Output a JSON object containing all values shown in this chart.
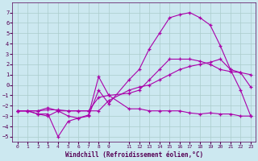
{
  "xlabel": "Windchill (Refroidissement éolien,°C)",
  "background_color": "#cce8f0",
  "grid_color": "#aacccc",
  "line_color": "#aa00aa",
  "ylim": [
    -5.5,
    8.0
  ],
  "xlim": [
    -0.5,
    23.5
  ],
  "y_ticks": [
    -5,
    -4,
    -3,
    -2,
    -1,
    0,
    1,
    2,
    3,
    4,
    5,
    6,
    7
  ],
  "x_ticks": [
    0,
    1,
    2,
    3,
    4,
    5,
    6,
    7,
    8,
    9,
    11,
    12,
    13,
    14,
    15,
    16,
    17,
    18,
    19,
    20,
    21,
    22,
    23
  ],
  "series": [
    [
      0,
      -2.5
    ],
    [
      1,
      -2.5
    ],
    [
      2,
      -2.8
    ],
    [
      3,
      -2.8
    ],
    [
      4,
      -5.0
    ],
    [
      5,
      -3.5
    ],
    [
      6,
      -3.2
    ],
    [
      7,
      -2.9
    ],
    [
      8,
      0.8
    ],
    [
      9,
      -1.0
    ],
    [
      11,
      -2.3
    ],
    [
      12,
      -2.3
    ],
    [
      13,
      -2.5
    ],
    [
      14,
      -2.5
    ],
    [
      15,
      -2.5
    ],
    [
      16,
      -2.5
    ],
    [
      17,
      -2.7
    ],
    [
      18,
      -2.8
    ],
    [
      19,
      -2.7
    ],
    [
      20,
      -2.8
    ],
    [
      21,
      -2.8
    ],
    [
      22,
      -3.0
    ],
    [
      23,
      -3.0
    ]
  ],
  "series2": [
    [
      0,
      -2.5
    ],
    [
      1,
      -2.5
    ],
    [
      2,
      -2.5
    ],
    [
      3,
      -2.4
    ],
    [
      4,
      -2.4
    ],
    [
      5,
      -2.5
    ],
    [
      6,
      -2.5
    ],
    [
      7,
      -2.5
    ],
    [
      8,
      -1.2
    ],
    [
      9,
      -1.0
    ],
    [
      11,
      -0.8
    ],
    [
      12,
      -0.5
    ],
    [
      13,
      0.5
    ],
    [
      14,
      1.5
    ],
    [
      15,
      2.5
    ],
    [
      16,
      2.5
    ],
    [
      17,
      2.5
    ],
    [
      18,
      2.3
    ],
    [
      19,
      2.0
    ],
    [
      20,
      1.5
    ],
    [
      21,
      1.3
    ],
    [
      22,
      1.2
    ],
    [
      23,
      1.0
    ]
  ],
  "series3": [
    [
      0,
      -2.5
    ],
    [
      1,
      -2.5
    ],
    [
      2,
      -2.5
    ],
    [
      3,
      -2.2
    ],
    [
      4,
      -2.5
    ],
    [
      5,
      -3.0
    ],
    [
      6,
      -3.2
    ],
    [
      7,
      -3.0
    ],
    [
      8,
      -0.5
    ],
    [
      9,
      -1.8
    ],
    [
      11,
      0.5
    ],
    [
      12,
      1.5
    ],
    [
      13,
      3.5
    ],
    [
      14,
      5.0
    ],
    [
      15,
      6.5
    ],
    [
      16,
      6.8
    ],
    [
      17,
      7.0
    ],
    [
      18,
      6.5
    ],
    [
      19,
      5.8
    ],
    [
      20,
      3.8
    ],
    [
      21,
      1.5
    ],
    [
      22,
      1.2
    ],
    [
      23,
      -0.2
    ]
  ],
  "series4": [
    [
      0,
      -2.5
    ],
    [
      1,
      -2.5
    ],
    [
      2,
      -2.8
    ],
    [
      3,
      -3.0
    ],
    [
      4,
      -2.5
    ],
    [
      5,
      -2.5
    ],
    [
      6,
      -2.5
    ],
    [
      7,
      -2.5
    ],
    [
      8,
      -2.5
    ],
    [
      9,
      -1.5
    ],
    [
      11,
      -0.5
    ],
    [
      12,
      -0.2
    ],
    [
      13,
      0.0
    ],
    [
      14,
      0.5
    ],
    [
      15,
      1.0
    ],
    [
      16,
      1.5
    ],
    [
      17,
      1.8
    ],
    [
      18,
      2.0
    ],
    [
      19,
      2.2
    ],
    [
      20,
      2.5
    ],
    [
      21,
      1.5
    ],
    [
      22,
      -0.5
    ],
    [
      23,
      -3.0
    ]
  ]
}
